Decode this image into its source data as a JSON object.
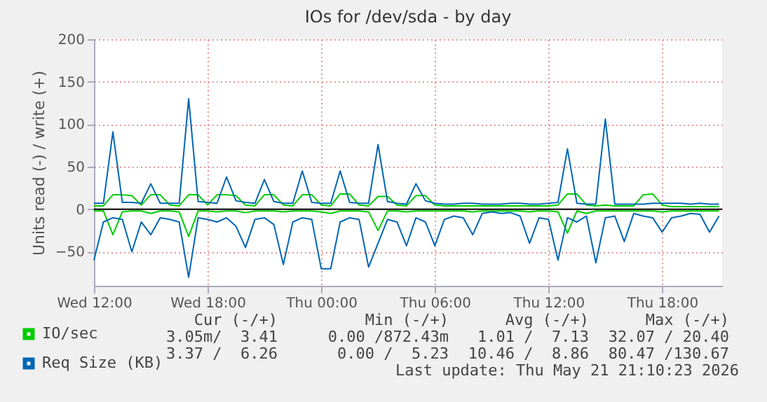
{
  "chart_data": {
    "type": "line",
    "title": "IOs for /dev/sda - by day",
    "ylabel": "Units read (-) / write (+)",
    "x": [
      "2026-05-20T12:00",
      "2026-05-20T12:30",
      "2026-05-20T13:00",
      "2026-05-20T13:30",
      "2026-05-20T14:00",
      "2026-05-20T14:30",
      "2026-05-20T15:00",
      "2026-05-20T15:30",
      "2026-05-20T16:00",
      "2026-05-20T16:30",
      "2026-05-20T17:00",
      "2026-05-20T17:30",
      "2026-05-20T18:00",
      "2026-05-20T18:30",
      "2026-05-20T19:00",
      "2026-05-20T19:30",
      "2026-05-20T20:00",
      "2026-05-20T20:30",
      "2026-05-20T21:00",
      "2026-05-20T21:30",
      "2026-05-20T22:00",
      "2026-05-20T22:30",
      "2026-05-20T23:00",
      "2026-05-20T23:30",
      "2026-05-21T00:00",
      "2026-05-21T00:30",
      "2026-05-21T01:00",
      "2026-05-21T01:30",
      "2026-05-21T02:00",
      "2026-05-21T02:30",
      "2026-05-21T03:00",
      "2026-05-21T03:30",
      "2026-05-21T04:00",
      "2026-05-21T04:30",
      "2026-05-21T05:00",
      "2026-05-21T05:30",
      "2026-05-21T06:00",
      "2026-05-21T06:30",
      "2026-05-21T07:00",
      "2026-05-21T07:30",
      "2026-05-21T08:00",
      "2026-05-21T08:30",
      "2026-05-21T09:00",
      "2026-05-21T09:30",
      "2026-05-21T10:00",
      "2026-05-21T10:30",
      "2026-05-21T11:00",
      "2026-05-21T11:30",
      "2026-05-21T12:00",
      "2026-05-21T12:30",
      "2026-05-21T13:00",
      "2026-05-21T13:30",
      "2026-05-21T14:00",
      "2026-05-21T14:30",
      "2026-05-21T15:00",
      "2026-05-21T15:30",
      "2026-05-21T16:00",
      "2026-05-21T16:30",
      "2026-05-21T17:00",
      "2026-05-21T17:30",
      "2026-05-21T18:00",
      "2026-05-21T18:30",
      "2026-05-21T19:00",
      "2026-05-21T19:30",
      "2026-05-21T20:00",
      "2026-05-21T20:30",
      "2026-05-21T21:00"
    ],
    "series": [
      {
        "color": "#00cc00",
        "values": [
          -2,
          -2,
          -30,
          -3,
          -2,
          -2,
          -5,
          -2,
          -2,
          -3,
          -32,
          -2,
          -2,
          -3,
          -2,
          -2,
          -4,
          -2,
          -2,
          -2,
          -3,
          -2,
          -2,
          -2,
          -3,
          -5,
          -2,
          -2,
          -2,
          -3,
          -25,
          -2,
          -2,
          -3,
          -2,
          -2,
          -2,
          -2,
          -2,
          -2,
          -3,
          -2,
          -2,
          -2,
          -2,
          -2,
          -3,
          -2,
          -2,
          -3,
          -28,
          -2,
          -5,
          -2,
          -2,
          -2,
          -2,
          -2,
          -2,
          -2,
          -3,
          -2,
          -2,
          -2,
          -2,
          -2,
          -2
        ]
      },
      {
        "color": "#0066b3",
        "values": [
          -60,
          -15,
          -10,
          -12,
          -50,
          -15,
          -30,
          -10,
          -12,
          -15,
          -80,
          -10,
          -12,
          -15,
          -10,
          -20,
          -45,
          -12,
          -10,
          -18,
          -65,
          -15,
          -10,
          -12,
          -70,
          -70,
          -15,
          -10,
          -12,
          -68,
          -40,
          -12,
          -15,
          -43,
          -10,
          -15,
          -43,
          -12,
          -8,
          -10,
          -30,
          -5,
          -3,
          -5,
          -4,
          -8,
          -40,
          -10,
          -12,
          -60,
          -10,
          -15,
          -8,
          -63,
          -10,
          -8,
          -38,
          -5,
          -8,
          -10,
          -27,
          -10,
          -8,
          -5,
          -6,
          -27,
          -8
        ]
      },
      {
        "name": "IO/sec",
        "color": "#00cc00",
        "values": [
          4,
          4,
          17,
          17,
          16,
          5,
          17,
          17,
          5,
          4,
          17,
          17,
          5,
          17,
          17,
          16,
          5,
          4,
          17,
          17,
          5,
          4,
          17,
          17,
          5,
          4,
          18,
          18,
          5,
          4,
          15,
          15,
          5,
          4,
          16,
          16,
          5,
          4,
          4,
          4,
          4,
          4,
          4,
          4,
          4,
          4,
          4,
          4,
          4,
          5,
          18,
          18,
          5,
          4,
          5,
          4,
          4,
          4,
          17,
          18,
          5,
          3,
          3,
          3,
          3,
          3,
          3
        ]
      },
      {
        "name": "Req Size (KB)",
        "color": "#0066b3",
        "values": [
          7,
          7,
          91,
          8,
          8,
          7,
          30,
          7,
          7,
          7,
          130,
          9,
          8,
          7,
          38,
          10,
          8,
          7,
          35,
          9,
          7,
          7,
          45,
          8,
          7,
          7,
          45,
          8,
          7,
          7,
          76,
          9,
          7,
          6,
          30,
          10,
          7,
          6,
          6,
          7,
          7,
          6,
          6,
          6,
          7,
          7,
          6,
          6,
          7,
          8,
          71,
          7,
          6,
          6,
          106,
          6,
          6,
          6,
          6,
          7,
          7,
          7,
          7,
          6,
          7,
          6,
          6
        ]
      }
    ],
    "xlim": [
      "2026-05-20T12:00",
      "2026-05-21T21:10"
    ],
    "xticks": [
      {
        "value": "2026-05-20T12:00",
        "label": "Wed 12:00"
      },
      {
        "value": "2026-05-20T18:00",
        "label": "Wed 18:00"
      },
      {
        "value": "2026-05-21T00:00",
        "label": "Thu 00:00"
      },
      {
        "value": "2026-05-21T06:00",
        "label": "Thu 06:00"
      },
      {
        "value": "2026-05-21T12:00",
        "label": "Thu 12:00"
      },
      {
        "value": "2026-05-21T18:00",
        "label": "Thu 18:00"
      }
    ],
    "ylim": [
      -90,
      200
    ],
    "yticks": [
      -50,
      0,
      50,
      100,
      150,
      200
    ],
    "ref_lines": [
      {
        "axis": "y",
        "value": 0,
        "color": "#000000"
      }
    ],
    "grid": true,
    "legend": "bottom left",
    "annotations": [
      "Cur (-/+)",
      "Min (-/+)",
      "Avg (-/+)",
      "Max (-/+)",
      "3.05m/  3.41",
      "0.00 /872.43m",
      "1.01 /  7.13",
      "32.07 / 20.40",
      "3.37 /  6.26",
      "0.00 /  5.23",
      "10.46 /  8.86",
      "80.47 /130.67",
      "Last update: Thu May 21 21:10:23 2026"
    ]
  }
}
